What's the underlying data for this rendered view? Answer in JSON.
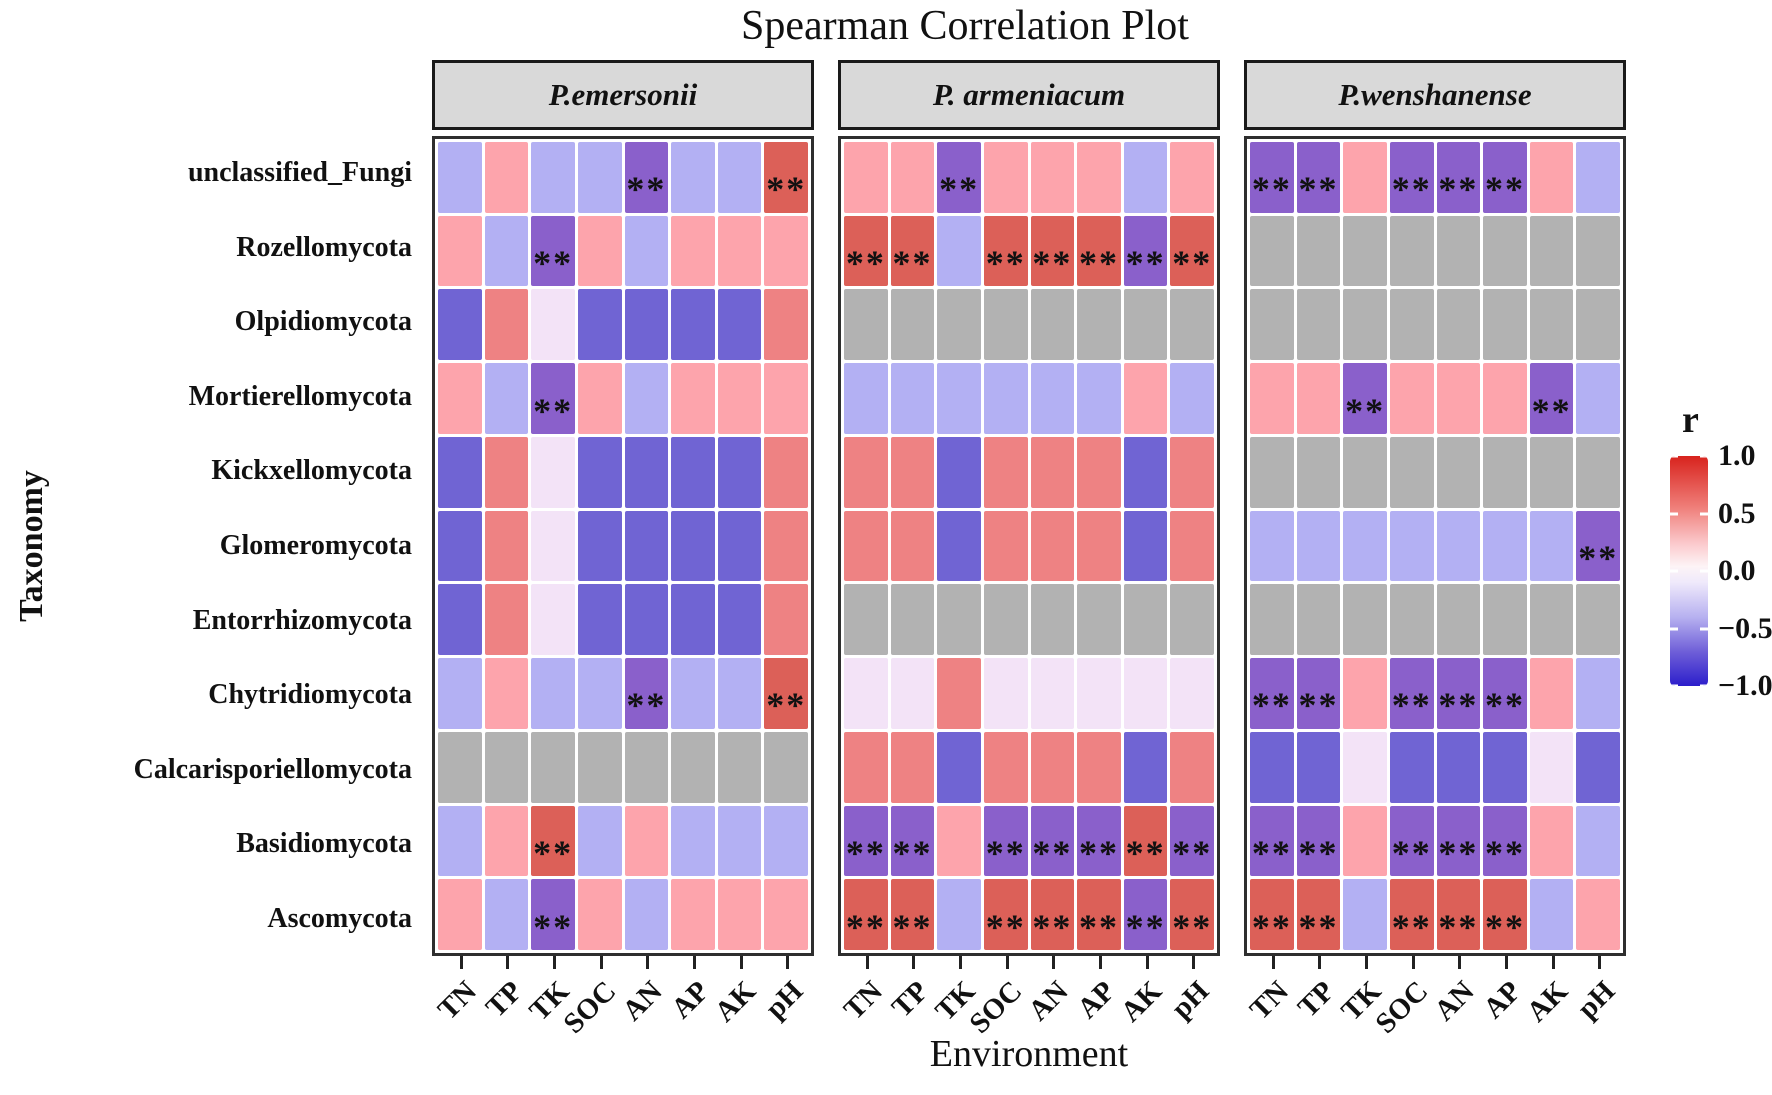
{
  "title": "Spearman Correlation Plot",
  "x_axis": {
    "title": "Environment",
    "categories": [
      "TN",
      "TP",
      "TK",
      "SOC",
      "AN",
      "AP",
      "AK",
      "pH"
    ]
  },
  "y_axis": {
    "title": "Taxonomy",
    "categories": [
      "unclassified_Fungi",
      "Rozellomycota",
      "Olpidiomycota",
      "Mortierellomycota",
      "Kickxellomycota",
      "Glomeromycota",
      "Entorrhizomycota",
      "Chytridiomycota",
      "Calcarisporiellomycota",
      "Basidiomycota",
      "Ascomycota"
    ]
  },
  "legend": {
    "title": "r",
    "ticks": [
      "1.0",
      "0.5",
      "0.0",
      "−0.5",
      "−1.0"
    ],
    "gradient": [
      [
        "#d8231d",
        0
      ],
      [
        "#ef7d78",
        22
      ],
      [
        "#fbc9cc",
        38
      ],
      [
        "#fdf4f6",
        48
      ],
      [
        "#efe9fb",
        55
      ],
      [
        "#b7b1f0",
        70
      ],
      [
        "#6f5fd8",
        85
      ],
      [
        "#2c1ecb",
        100
      ]
    ]
  },
  "sig_marker": "**",
  "palette": {
    "0.8": "#dc6058",
    "0.55": "#ee8283",
    "0.35": "#fda4ac",
    "-0.05": "#f3e3f7",
    "-0.3": "#b3b0f3",
    "-0.55": "#8a60cb",
    "-0.7": "#7064d3",
    "NA": "#b2b2b2"
  },
  "chart_data": {
    "type": "heatmap",
    "title": "Spearman Correlation Plot",
    "xlabel": "Environment",
    "ylabel": "Taxonomy",
    "value_name": "r",
    "value_range": [
      -1.0,
      1.0
    ],
    "x_categories": [
      "TN",
      "TP",
      "TK",
      "SOC",
      "AN",
      "AP",
      "AK",
      "pH"
    ],
    "y_categories": [
      "unclassified_Fungi",
      "Rozellomycota",
      "Olpidiomycota",
      "Mortierellomycota",
      "Kickxellomycota",
      "Glomeromycota",
      "Entorrhizomycota",
      "Chytridiomycota",
      "Calcarisporiellomycota",
      "Basidiomycota",
      "Ascomycota"
    ],
    "cell_encoding": "r value estimated from color scale; '*' suffix = ** significance; NA = gray missing cell",
    "facets": [
      {
        "label": "P.emersonii",
        "rows": [
          [
            "-0.3",
            "0.35",
            "-0.3",
            "-0.3",
            "-0.55*",
            "-0.3",
            "-0.3",
            "0.8*"
          ],
          [
            "0.35",
            "-0.3",
            "-0.55*",
            "0.35",
            "-0.3",
            "0.35",
            "0.35",
            "0.35"
          ],
          [
            "-0.7",
            "0.55",
            "-0.05",
            "-0.7",
            "-0.7",
            "-0.7",
            "-0.7",
            "0.55"
          ],
          [
            "0.35",
            "-0.3",
            "-0.55*",
            "0.35",
            "-0.3",
            "0.35",
            "0.35",
            "0.35"
          ],
          [
            "-0.7",
            "0.55",
            "-0.05",
            "-0.7",
            "-0.7",
            "-0.7",
            "-0.7",
            "0.55"
          ],
          [
            "-0.7",
            "0.55",
            "-0.05",
            "-0.7",
            "-0.7",
            "-0.7",
            "-0.7",
            "0.55"
          ],
          [
            "-0.7",
            "0.55",
            "-0.05",
            "-0.7",
            "-0.7",
            "-0.7",
            "-0.7",
            "0.55"
          ],
          [
            "-0.3",
            "0.35",
            "-0.3",
            "-0.3",
            "-0.55*",
            "-0.3",
            "-0.3",
            "0.8*"
          ],
          [
            "NA",
            "NA",
            "NA",
            "NA",
            "NA",
            "NA",
            "NA",
            "NA"
          ],
          [
            "-0.3",
            "0.35",
            "0.8*",
            "-0.3",
            "0.35",
            "-0.3",
            "-0.3",
            "-0.3"
          ],
          [
            "0.35",
            "-0.3",
            "-0.55*",
            "0.35",
            "-0.3",
            "0.35",
            "0.35",
            "0.35"
          ]
        ]
      },
      {
        "label": "P. armeniacum",
        "rows": [
          [
            "0.35",
            "0.35",
            "-0.55*",
            "0.35",
            "0.35",
            "0.35",
            "-0.3",
            "0.35"
          ],
          [
            "0.8*",
            "0.8*",
            "-0.3",
            "0.8*",
            "0.8*",
            "0.8*",
            "-0.55*",
            "0.8*"
          ],
          [
            "NA",
            "NA",
            "NA",
            "NA",
            "NA",
            "NA",
            "NA",
            "NA"
          ],
          [
            "-0.3",
            "-0.3",
            "-0.3",
            "-0.3",
            "-0.3",
            "-0.3",
            "0.35",
            "-0.3"
          ],
          [
            "0.55",
            "0.55",
            "-0.7",
            "0.55",
            "0.55",
            "0.55",
            "-0.7",
            "0.55"
          ],
          [
            "0.55",
            "0.55",
            "-0.7",
            "0.55",
            "0.55",
            "0.55",
            "-0.7",
            "0.55"
          ],
          [
            "NA",
            "NA",
            "NA",
            "NA",
            "NA",
            "NA",
            "NA",
            "NA"
          ],
          [
            "-0.05",
            "-0.05",
            "0.55",
            "-0.05",
            "-0.05",
            "-0.05",
            "-0.05",
            "-0.05"
          ],
          [
            "0.55",
            "0.55",
            "-0.7",
            "0.55",
            "0.55",
            "0.55",
            "-0.7",
            "0.55"
          ],
          [
            "-0.55*",
            "-0.55*",
            "0.35",
            "-0.55*",
            "-0.55*",
            "-0.55*",
            "0.8*",
            "-0.55*"
          ],
          [
            "0.8*",
            "0.8*",
            "-0.3",
            "0.8*",
            "0.8*",
            "0.8*",
            "-0.55*",
            "0.8*"
          ]
        ]
      },
      {
        "label": "P.wenshanense",
        "rows": [
          [
            "-0.55*",
            "-0.55*",
            "0.35",
            "-0.55*",
            "-0.55*",
            "-0.55*",
            "0.35",
            "-0.3"
          ],
          [
            "NA",
            "NA",
            "NA",
            "NA",
            "NA",
            "NA",
            "NA",
            "NA"
          ],
          [
            "NA",
            "NA",
            "NA",
            "NA",
            "NA",
            "NA",
            "NA",
            "NA"
          ],
          [
            "0.35",
            "0.35",
            "-0.55*",
            "0.35",
            "0.35",
            "0.35",
            "-0.55*",
            "-0.3"
          ],
          [
            "NA",
            "NA",
            "NA",
            "NA",
            "NA",
            "NA",
            "NA",
            "NA"
          ],
          [
            "-0.3",
            "-0.3",
            "-0.3",
            "-0.3",
            "-0.3",
            "-0.3",
            "-0.3",
            "-0.55*"
          ],
          [
            "NA",
            "NA",
            "NA",
            "NA",
            "NA",
            "NA",
            "NA",
            "NA"
          ],
          [
            "-0.55*",
            "-0.55*",
            "0.35",
            "-0.55*",
            "-0.55*",
            "-0.55*",
            "0.35",
            "-0.3"
          ],
          [
            "-0.7",
            "-0.7",
            "-0.05",
            "-0.7",
            "-0.7",
            "-0.7",
            "-0.05",
            "-0.7"
          ],
          [
            "-0.55*",
            "-0.55*",
            "0.35",
            "-0.55*",
            "-0.55*",
            "-0.55*",
            "0.35",
            "-0.3"
          ],
          [
            "0.8*",
            "0.8*",
            "-0.3",
            "0.8*",
            "0.8*",
            "0.8*",
            "-0.3",
            "0.35"
          ]
        ]
      }
    ]
  }
}
